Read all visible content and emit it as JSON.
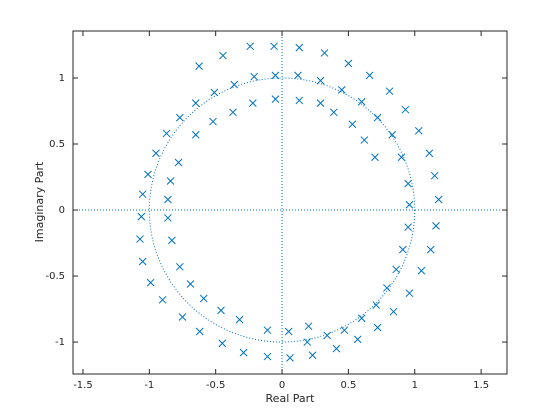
{
  "chart_data": {
    "type": "scatter",
    "marker": "x",
    "color": "#0072bd",
    "xlabel": "Real Part",
    "ylabel": "Imaginary Part",
    "xlim": [
      -1.575,
      1.695
    ],
    "ylim": [
      -1.242,
      1.356
    ],
    "xticks": [
      -1.5,
      -1,
      -0.5,
      0,
      0.5,
      1,
      1.5
    ],
    "yticks": [
      -1,
      -0.5,
      0,
      0.5,
      1
    ],
    "x": [
      -0.625,
      -0.445,
      -0.24,
      -0.06,
      0.13,
      0.32,
      0.5,
      0.66,
      0.81,
      0.93,
      1.03,
      1.11,
      1.15,
      1.18,
      1.16,
      1.12,
      1.05,
      0.96,
      0.84,
      0.72,
      0.57,
      0.41,
      0.23,
      0.06,
      -0.11,
      -0.29,
      -0.45,
      -0.62,
      -0.75,
      -0.9,
      -0.99,
      -1.05,
      -1.07,
      -1.06,
      -1.05,
      -1.01,
      -0.95,
      -0.87,
      -0.77,
      -0.65,
      -0.51,
      -0.36,
      -0.21,
      -0.05,
      0.12,
      0.29,
      0.45,
      0.6,
      0.72,
      0.83,
      0.9,
      0.95,
      0.96,
      0.95,
      0.91,
      0.86,
      0.79,
      0.71,
      0.6,
      0.47,
      0.34,
      0.19,
      -0.37,
      -0.22,
      -0.05,
      0.13,
      0.29,
      0.39,
      0.53,
      0.62,
      0.7,
      -0.52,
      -0.65,
      -0.78,
      -0.84,
      -0.86,
      -0.86,
      -0.83,
      -0.77,
      -0.69,
      -0.59,
      -0.46,
      -0.32,
      -0.11,
      0.05,
      0.2
    ],
    "y": [
      1.09,
      1.17,
      1.24,
      1.24,
      1.23,
      1.19,
      1.11,
      1.02,
      0.9,
      0.76,
      0.6,
      0.43,
      0.26,
      0.08,
      -0.12,
      -0.3,
      -0.46,
      -0.63,
      -0.77,
      -0.89,
      -0.98,
      -1.05,
      -1.1,
      -1.12,
      -1.11,
      -1.08,
      -1.01,
      -0.92,
      -0.81,
      -0.68,
      -0.55,
      -0.39,
      -0.22,
      -0.05,
      0.12,
      0.27,
      0.43,
      0.58,
      0.7,
      0.81,
      0.89,
      0.95,
      1.01,
      1.02,
      1.02,
      0.98,
      0.91,
      0.82,
      0.7,
      0.57,
      0.4,
      0.2,
      0.04,
      -0.13,
      -0.3,
      -0.45,
      -0.59,
      -0.72,
      -0.82,
      -0.91,
      -0.95,
      -1.0,
      0.74,
      0.81,
      0.84,
      0.83,
      0.81,
      0.74,
      0.65,
      0.53,
      0.4,
      0.67,
      0.57,
      0.36,
      0.22,
      0.08,
      -0.06,
      -0.23,
      -0.43,
      -0.56,
      -0.67,
      -0.76,
      -0.83,
      -0.91,
      -0.92,
      -0.88
    ]
  }
}
